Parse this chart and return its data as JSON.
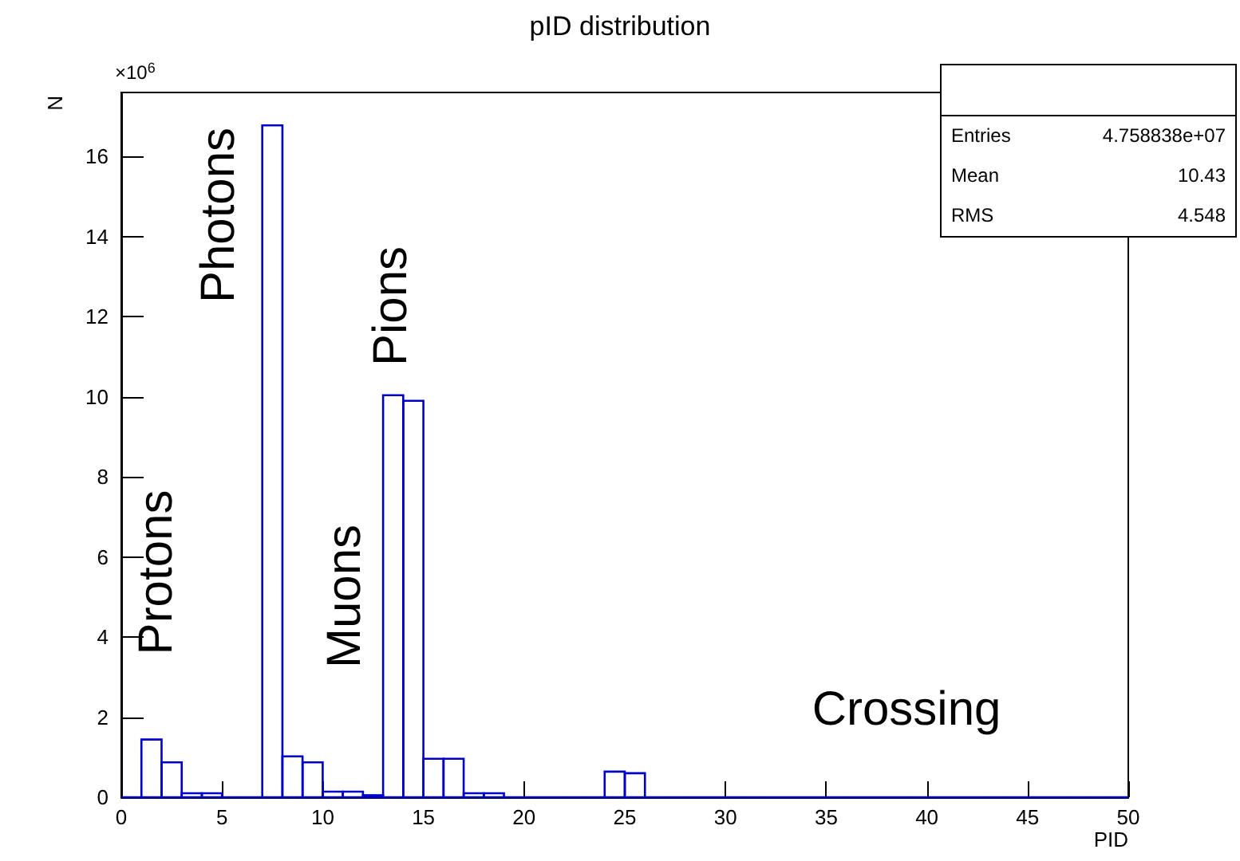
{
  "chart_data": {
    "type": "histogram",
    "title": "pID distribution",
    "xlabel": "PID",
    "ylabel": "N",
    "bins": [
      0,
      1,
      2,
      3,
      4,
      5,
      6,
      7,
      8,
      9,
      10,
      11,
      12,
      13,
      14,
      15,
      16,
      17,
      18,
      19,
      20,
      21,
      22,
      23,
      24,
      25,
      26,
      27,
      28,
      29,
      30,
      31,
      32,
      33,
      34,
      35,
      36,
      37,
      38,
      39,
      40,
      41,
      42,
      43,
      44,
      45,
      46,
      47,
      48,
      49,
      50
    ],
    "values": [
      0,
      1.44,
      0.87,
      0.1,
      0.1,
      0,
      0,
      16.78,
      1.02,
      0.87,
      0.14,
      0.14,
      0.05,
      10.04,
      9.9,
      0.96,
      0.96,
      0.1,
      0.1,
      0,
      0,
      0,
      0,
      0,
      0.64,
      0.6,
      0,
      0,
      0,
      0,
      0,
      0,
      0,
      0,
      0,
      0,
      0,
      0,
      0,
      0,
      0,
      0,
      0,
      0,
      0,
      0,
      0,
      0,
      0,
      0
    ],
    "color": "#0000cc",
    "xlim": [
      0,
      50
    ],
    "xticks": [
      0,
      5,
      10,
      15,
      20,
      25,
      30,
      35,
      40,
      45,
      50
    ],
    "ylim": [
      0,
      17.6
    ],
    "yticks": [
      0,
      2,
      4,
      6,
      8,
      10,
      12,
      14,
      16
    ],
    "grid": false,
    "annotations": [
      "×10$^{6}$",
      "Entries 4.758838e+07",
      "Mean 10.43",
      "RMS 4.548",
      "Protons",
      "Photons",
      "Muons",
      "Pions",
      "Crossing"
    ]
  }
}
